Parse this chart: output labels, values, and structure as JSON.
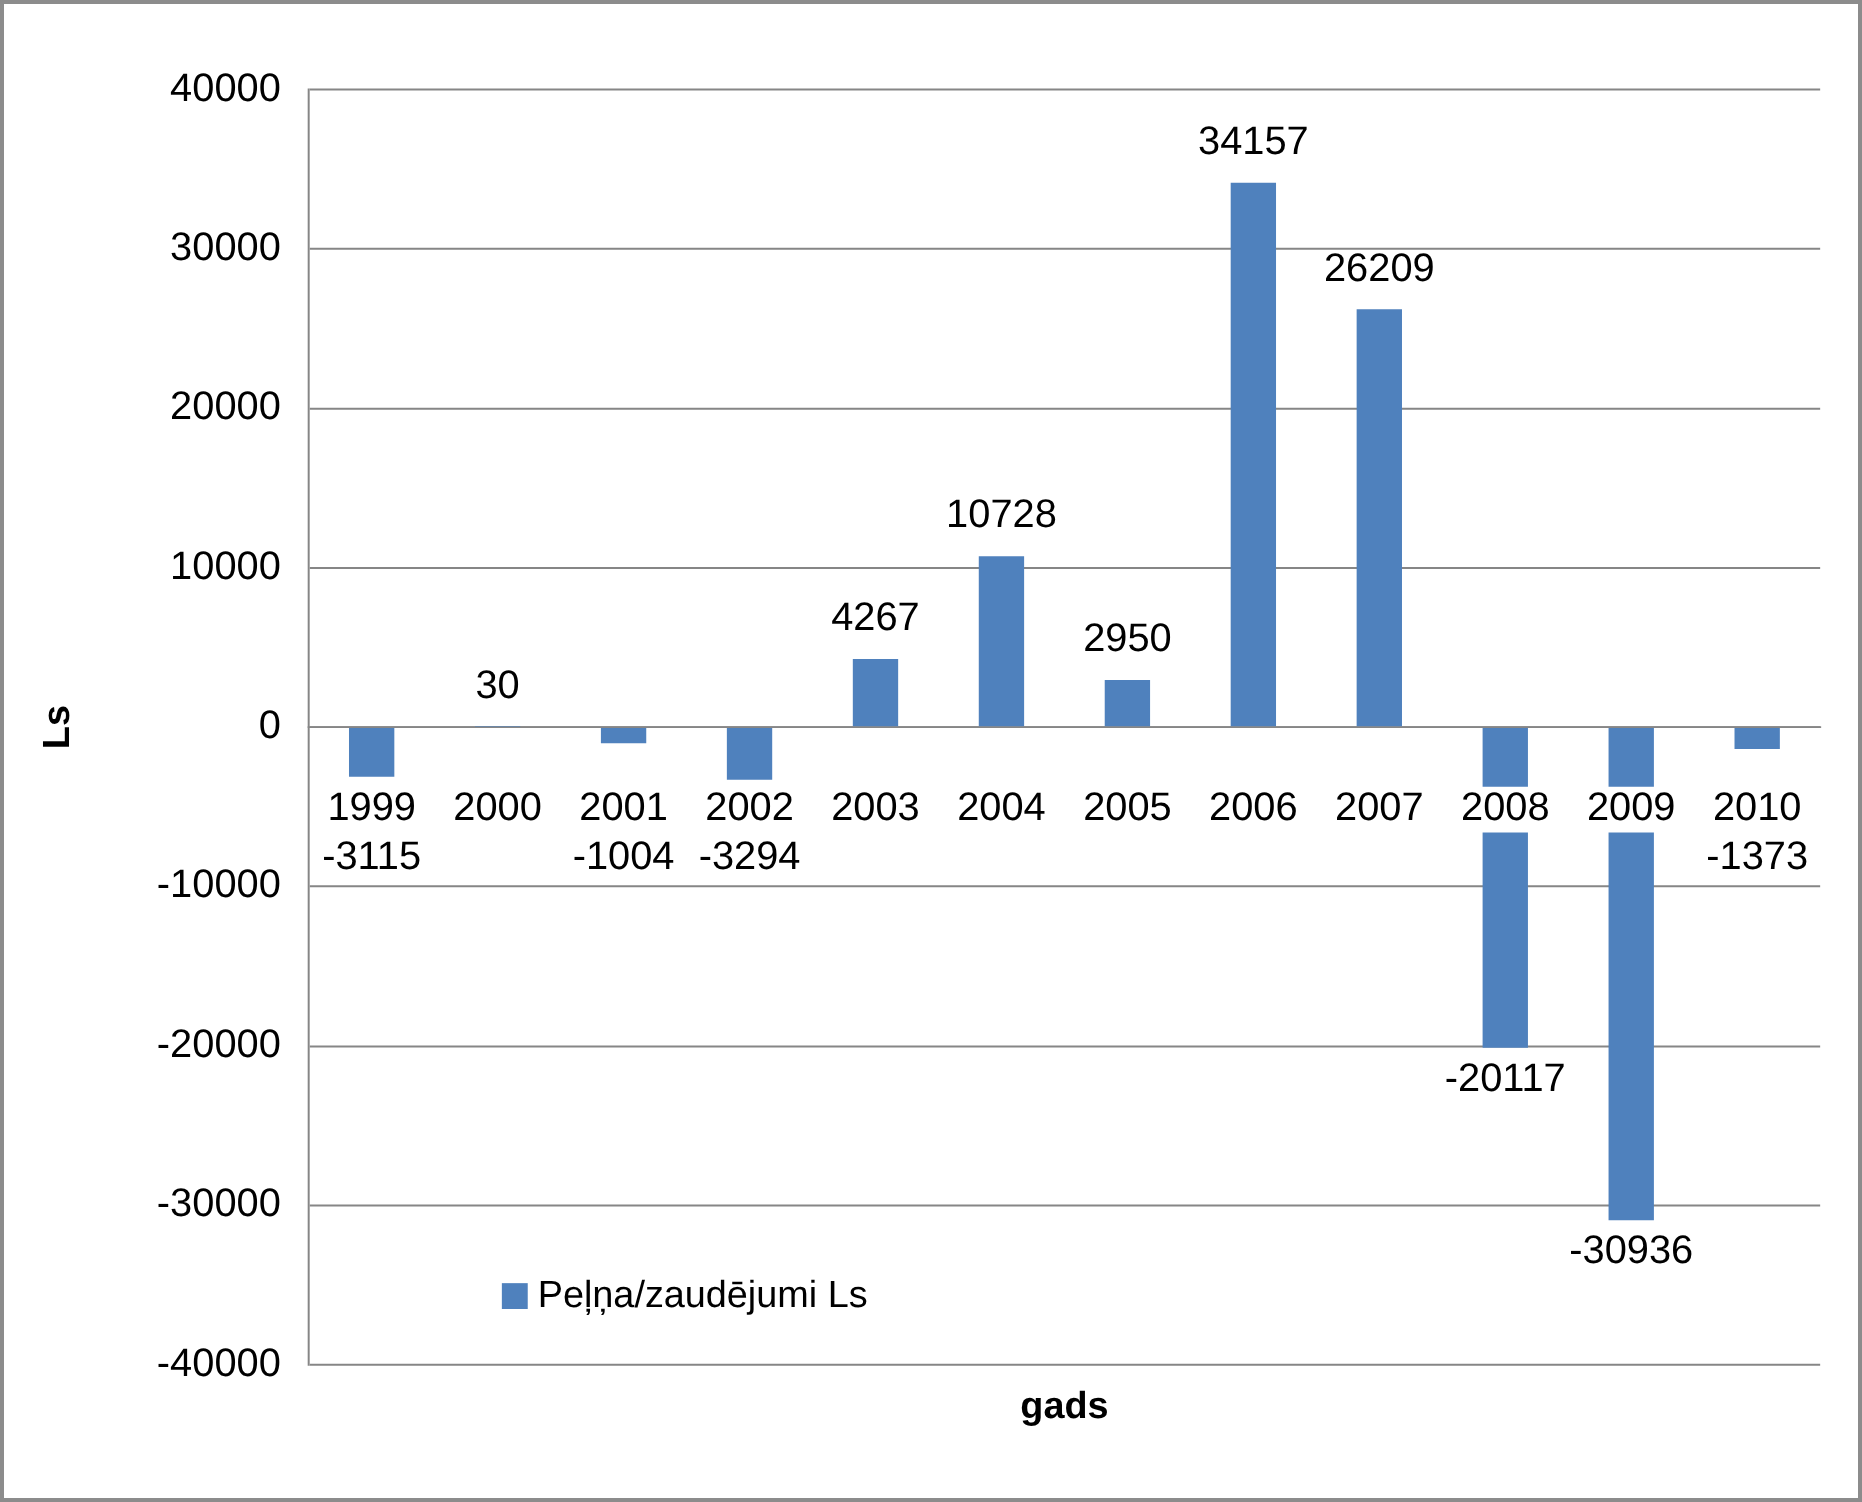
{
  "chart_data": {
    "type": "bar",
    "xlabel": "gads",
    "ylabel": "Ls",
    "categories": [
      "1999",
      "2000",
      "2001",
      "2002",
      "2003",
      "2004",
      "2005",
      "2006",
      "2007",
      "2008",
      "2009",
      "2010"
    ],
    "series": [
      {
        "name": "Peļņa/zaudējumi Ls",
        "color": "#4f81bd",
        "values": [
          -3115,
          30,
          -1004,
          -3294,
          4267,
          10728,
          2950,
          34157,
          26209,
          -20117,
          -30936,
          -1373
        ]
      }
    ],
    "ylim": [
      -40000,
      40000
    ],
    "yticks": [
      -40000,
      -30000,
      -20000,
      -10000,
      0,
      10000,
      20000,
      30000,
      40000
    ],
    "grid": "y",
    "legend": "bottom left",
    "data_labels": true
  }
}
